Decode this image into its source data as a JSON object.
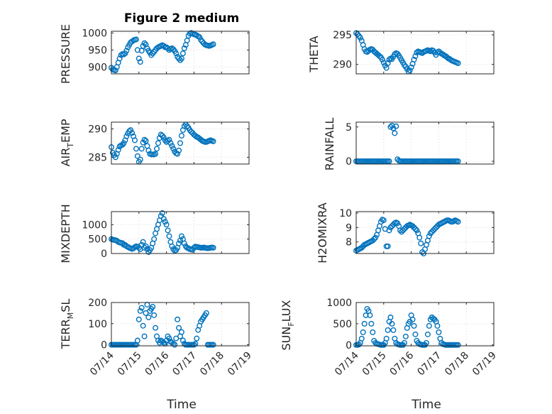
{
  "figure": {
    "title": "Figure 2 medium",
    "marker_color": "#0072BD",
    "x_tick_labels": [
      "07/14",
      "07/15",
      "07/16",
      "07/17",
      "07/18",
      "07/19"
    ],
    "x_axis_label": "Time"
  },
  "chart_data": [
    {
      "type": "scatter",
      "ylabel": "PRESSURE",
      "title": "Figure 2 medium",
      "xlim": [
        0,
        5
      ],
      "ylim": [
        880,
        1005
      ],
      "yticks": [
        900,
        950,
        1000
      ],
      "ytick_labels": [
        "900",
        "950",
        "1000"
      ],
      "x": [
        0.0,
        0.05,
        0.1,
        0.15,
        0.2,
        0.25,
        0.3,
        0.35,
        0.4,
        0.45,
        0.5,
        0.55,
        0.6,
        0.65,
        0.7,
        0.75,
        0.8,
        0.85,
        0.9,
        0.95,
        1.0,
        1.05,
        1.1,
        1.15,
        1.2,
        1.25,
        1.3,
        1.35,
        1.4,
        1.45,
        1.5,
        1.55,
        1.6,
        1.65,
        1.7,
        1.75,
        1.8,
        1.85,
        1.9,
        1.95,
        2.0,
        2.05,
        2.1,
        2.15,
        2.2,
        2.25,
        2.3,
        2.35,
        2.4,
        2.45,
        2.5,
        2.55,
        2.6,
        2.65,
        2.7,
        2.75,
        2.8,
        2.85,
        2.9,
        2.95,
        3.0,
        3.05,
        3.1,
        3.15,
        3.2,
        3.25,
        3.3,
        3.35,
        3.4,
        3.45,
        3.5,
        3.55,
        3.6,
        3.65,
        3.7
      ],
      "y": [
        898,
        893,
        891,
        890,
        900,
        913,
        925,
        935,
        938,
        937,
        940,
        948,
        958,
        965,
        972,
        975,
        978,
        980,
        981,
        950,
        925,
        915,
        948,
        962,
        970,
        966,
        955,
        948,
        942,
        935,
        940,
        945,
        950,
        955,
        958,
        960,
        962,
        964,
        962,
        958,
        958,
        955,
        950,
        953,
        955,
        952,
        947,
        940,
        930,
        925,
        920,
        925,
        940,
        955,
        965,
        978,
        992,
        998,
        1000,
        998,
        996,
        995,
        993,
        990,
        988,
        980,
        975,
        970,
        966,
        964,
        963,
        962,
        963,
        965,
        967
      ]
    },
    {
      "type": "scatter",
      "ylabel": "THETA",
      "xlim": [
        0,
        5
      ],
      "ylim": [
        288.4,
        295.6
      ],
      "yticks": [
        290,
        295
      ],
      "ytick_labels": [
        "290",
        "295"
      ],
      "x": [
        0.0,
        0.05,
        0.1,
        0.15,
        0.2,
        0.25,
        0.3,
        0.35,
        0.4,
        0.45,
        0.5,
        0.55,
        0.6,
        0.65,
        0.7,
        0.75,
        0.8,
        0.85,
        0.9,
        0.95,
        1.0,
        1.05,
        1.1,
        1.15,
        1.2,
        1.25,
        1.3,
        1.35,
        1.4,
        1.45,
        1.5,
        1.55,
        1.6,
        1.65,
        1.7,
        1.75,
        1.8,
        1.85,
        1.9,
        1.95,
        2.0,
        2.05,
        2.1,
        2.15,
        2.2,
        2.25,
        2.3,
        2.35,
        2.4,
        2.45,
        2.5,
        2.55,
        2.6,
        2.65,
        2.7,
        2.75,
        2.8,
        2.85,
        2.9,
        2.95,
        3.0,
        3.05,
        3.1,
        3.15,
        3.2,
        3.25,
        3.3,
        3.35,
        3.4,
        3.45,
        3.5,
        3.55,
        3.6,
        3.65,
        3.7
      ],
      "y": [
        295.3,
        295.1,
        294.8,
        294.5,
        294.0,
        293.3,
        292.6,
        292.2,
        292.1,
        292.3,
        292.5,
        292.6,
        292.5,
        292.2,
        292.0,
        291.8,
        291.6,
        291.4,
        291.2,
        290.8,
        290.3,
        289.8,
        289.4,
        290.2,
        290.8,
        291.0,
        290.9,
        291.3,
        291.7,
        291.9,
        291.8,
        291.5,
        291.1,
        290.7,
        290.3,
        289.9,
        289.6,
        289.2,
        288.8,
        289.0,
        289.5,
        290.1,
        290.8,
        291.4,
        292.0,
        292.2,
        292.1,
        292.0,
        291.9,
        292.1,
        292.2,
        292.3,
        292.4,
        292.3,
        292.2,
        292.4,
        292.3,
        292.0,
        291.6,
        292.0,
        292.2,
        292.0,
        291.8,
        291.7,
        291.5,
        291.4,
        291.2,
        291.0,
        290.9,
        290.7,
        290.6,
        290.5,
        290.4,
        290.3,
        290.2
      ]
    },
    {
      "type": "scatter",
      "ylabel": "AIR_TEMP",
      "xlim": [
        0,
        5
      ],
      "ylim": [
        283.8,
        291.2
      ],
      "yticks": [
        285,
        290
      ],
      "ytick_labels": [
        "285",
        "290"
      ],
      "x": [
        0.0,
        0.05,
        0.1,
        0.15,
        0.2,
        0.25,
        0.3,
        0.35,
        0.4,
        0.45,
        0.5,
        0.55,
        0.6,
        0.65,
        0.7,
        0.75,
        0.8,
        0.85,
        0.9,
        0.95,
        1.0,
        1.05,
        1.1,
        1.15,
        1.2,
        1.25,
        1.3,
        1.35,
        1.4,
        1.45,
        1.5,
        1.55,
        1.6,
        1.65,
        1.7,
        1.75,
        1.8,
        1.85,
        1.9,
        1.95,
        2.0,
        2.05,
        2.1,
        2.15,
        2.2,
        2.25,
        2.3,
        2.35,
        2.4,
        2.45,
        2.5,
        2.55,
        2.6,
        2.65,
        2.7,
        2.75,
        2.8,
        2.85,
        2.9,
        2.95,
        3.0,
        3.05,
        3.1,
        3.15,
        3.2,
        3.25,
        3.3,
        3.35,
        3.4,
        3.45,
        3.5,
        3.55,
        3.6,
        3.65,
        3.7
      ],
      "y": [
        286.8,
        285.8,
        285.4,
        285.0,
        285.6,
        286.3,
        286.9,
        287.1,
        287.2,
        287.5,
        288.0,
        288.7,
        289.2,
        289.6,
        289.8,
        289.3,
        288.7,
        288.0,
        286.5,
        285.2,
        284.2,
        284.6,
        286.5,
        287.6,
        288.1,
        287.9,
        287.0,
        286.2,
        285.6,
        285.5,
        285.5,
        285.5,
        285.6,
        286.5,
        287.5,
        288.4,
        289.0,
        288.8,
        288.5,
        288.0,
        287.7,
        287.9,
        288.1,
        287.5,
        287.0,
        286.5,
        286.0,
        285.7,
        285.6,
        286.2,
        287.5,
        288.8,
        289.8,
        290.5,
        290.8,
        290.5,
        290.2,
        289.8,
        289.5,
        289.3,
        289.0,
        288.8,
        288.6,
        288.5,
        288.3,
        288.1,
        287.9,
        287.8,
        287.7,
        287.7,
        287.8,
        287.9,
        288.0,
        287.9,
        287.8
      ]
    },
    {
      "type": "scatter",
      "ylabel": "RAINFALL",
      "xlim": [
        0,
        5
      ],
      "ylim": [
        -0.4,
        5.7
      ],
      "yticks": [
        0,
        5
      ],
      "ytick_labels": [
        "0",
        "5"
      ],
      "x": [
        0.0,
        0.05,
        0.1,
        0.15,
        0.2,
        0.25,
        0.3,
        0.35,
        0.4,
        0.45,
        0.5,
        0.55,
        0.6,
        0.65,
        0.7,
        0.75,
        0.8,
        0.85,
        0.9,
        0.95,
        1.0,
        1.05,
        1.1,
        1.15,
        1.2,
        1.25,
        1.3,
        1.35,
        1.4,
        1.45,
        1.5,
        1.55,
        1.6,
        1.65,
        1.7,
        1.75,
        1.8,
        1.85,
        1.9,
        1.95,
        2.0,
        2.05,
        2.1,
        2.15,
        2.2,
        2.25,
        2.3,
        2.35,
        2.4,
        2.45,
        2.5,
        2.55,
        2.6,
        2.65,
        2.7,
        2.75,
        2.8,
        2.85,
        2.9,
        2.95,
        3.0,
        3.05,
        3.1,
        3.15,
        3.2,
        3.25,
        3.3,
        3.35,
        3.4,
        3.45,
        3.5,
        3.55,
        3.6,
        3.65,
        3.7
      ],
      "y": [
        0,
        0,
        0,
        0,
        0,
        0,
        0,
        0,
        0,
        0,
        0,
        0,
        0,
        0,
        0,
        0,
        0,
        0,
        0,
        0,
        0,
        0,
        0,
        0,
        0,
        5.0,
        5.2,
        4.8,
        4.1,
        5.1,
        0.3,
        0.1,
        0,
        0,
        0,
        0,
        0,
        0,
        0,
        0,
        0,
        0,
        0,
        0,
        0,
        0,
        0,
        0,
        0,
        0,
        0,
        0,
        0,
        0,
        0,
        0,
        0,
        0,
        0,
        0,
        0,
        0,
        0,
        0,
        0,
        0,
        0,
        0,
        0,
        0,
        0,
        0,
        0,
        0,
        0
      ]
    },
    {
      "type": "scatter",
      "ylabel": "MIXDEPTH",
      "xlim": [
        0,
        5
      ],
      "ylim": [
        0,
        1450
      ],
      "yticks": [
        0,
        500,
        1000
      ],
      "ytick_labels": [
        "0",
        "500",
        "1000"
      ],
      "x": [
        0.0,
        0.05,
        0.1,
        0.15,
        0.2,
        0.25,
        0.3,
        0.35,
        0.4,
        0.45,
        0.5,
        0.55,
        0.6,
        0.65,
        0.7,
        0.75,
        0.8,
        0.85,
        0.9,
        0.95,
        1.0,
        1.05,
        1.1,
        1.15,
        1.2,
        1.25,
        1.3,
        1.35,
        1.4,
        1.45,
        1.5,
        1.55,
        1.6,
        1.65,
        1.7,
        1.75,
        1.8,
        1.85,
        1.9,
        1.95,
        2.0,
        2.05,
        2.1,
        2.15,
        2.2,
        2.25,
        2.3,
        2.35,
        2.4,
        2.45,
        2.5,
        2.55,
        2.6,
        2.65,
        2.7,
        2.75,
        2.8,
        2.85,
        2.9,
        2.95,
        3.0,
        3.05,
        3.1,
        3.15,
        3.2,
        3.25,
        3.3,
        3.35,
        3.4,
        3.45,
        3.5,
        3.55,
        3.6,
        3.65,
        3.7
      ],
      "y": [
        500,
        480,
        470,
        460,
        440,
        400,
        380,
        370,
        360,
        300,
        300,
        250,
        230,
        200,
        180,
        160,
        180,
        220,
        250,
        240,
        200,
        150,
        300,
        400,
        200,
        250,
        150,
        50,
        120,
        200,
        350,
        500,
        700,
        850,
        1000,
        1150,
        1300,
        1400,
        1200,
        1100,
        1000,
        800,
        600,
        400,
        250,
        150,
        100,
        120,
        200,
        350,
        450,
        600,
        500,
        350,
        250,
        200,
        180,
        150,
        140,
        130,
        200,
        240,
        230,
        220,
        210,
        200,
        200,
        210,
        200,
        190,
        180,
        190,
        200,
        210,
        200
      ]
    },
    {
      "type": "scatter",
      "ylabel": "H2OMIXRA",
      "xlim": [
        0,
        5
      ],
      "ylim": [
        7.2,
        10.1
      ],
      "yticks": [
        8,
        9,
        10
      ],
      "ytick_labels": [
        "8",
        "9",
        "10"
      ],
      "x": [
        0.0,
        0.05,
        0.1,
        0.15,
        0.2,
        0.25,
        0.3,
        0.35,
        0.4,
        0.45,
        0.5,
        0.55,
        0.6,
        0.65,
        0.7,
        0.75,
        0.8,
        0.85,
        0.9,
        0.95,
        1.0,
        1.05,
        1.1,
        1.15,
        1.2,
        1.25,
        1.3,
        1.35,
        1.4,
        1.45,
        1.5,
        1.55,
        1.6,
        1.65,
        1.7,
        1.75,
        1.8,
        1.85,
        1.9,
        1.95,
        2.0,
        2.05,
        2.1,
        2.15,
        2.2,
        2.25,
        2.3,
        2.35,
        2.4,
        2.45,
        2.5,
        2.55,
        2.6,
        2.65,
        2.7,
        2.75,
        2.8,
        2.85,
        2.9,
        2.95,
        3.0,
        3.05,
        3.1,
        3.15,
        3.2,
        3.25,
        3.3,
        3.35,
        3.4,
        3.45,
        3.5,
        3.55,
        3.6,
        3.65,
        3.7
      ],
      "y": [
        7.4,
        7.45,
        7.5,
        7.55,
        7.6,
        7.7,
        7.8,
        7.85,
        7.9,
        7.95,
        8.0,
        8.05,
        8.1,
        8.2,
        8.3,
        8.5,
        8.8,
        9.1,
        9.4,
        9.55,
        9.5,
        8.9,
        7.7,
        7.7,
        8.8,
        9.0,
        9.1,
        9.2,
        9.3,
        9.35,
        9.3,
        9.1,
        8.8,
        8.7,
        8.8,
        8.9,
        9.0,
        9.1,
        9.15,
        9.2,
        9.15,
        9.1,
        9.0,
        8.9,
        8.8,
        8.6,
        8.3,
        7.9,
        7.3,
        7.2,
        7.5,
        7.8,
        8.1,
        8.4,
        8.6,
        8.7,
        8.8,
        8.9,
        9.0,
        9.1,
        9.2,
        9.25,
        9.3,
        9.35,
        9.4,
        9.45,
        9.5,
        9.5,
        9.45,
        9.4,
        9.4,
        9.45,
        9.5,
        9.45,
        9.4
      ]
    },
    {
      "type": "scatter",
      "ylabel": "TERR_MSL",
      "xlim": [
        0,
        5
      ],
      "ylim": [
        -5,
        200
      ],
      "yticks": [
        0,
        100,
        200
      ],
      "ytick_labels": [
        "0",
        "100",
        "200"
      ],
      "x": [
        0.0,
        0.05,
        0.1,
        0.15,
        0.2,
        0.25,
        0.3,
        0.35,
        0.4,
        0.45,
        0.5,
        0.55,
        0.6,
        0.65,
        0.7,
        0.75,
        0.8,
        0.85,
        0.9,
        0.95,
        1.0,
        1.05,
        1.1,
        1.15,
        1.2,
        1.25,
        1.3,
        1.35,
        1.4,
        1.45,
        1.5,
        1.55,
        1.6,
        1.65,
        1.7,
        1.75,
        1.8,
        1.85,
        1.9,
        1.95,
        2.0,
        2.05,
        2.1,
        2.15,
        2.2,
        2.25,
        2.3,
        2.35,
        2.4,
        2.45,
        2.5,
        2.55,
        2.6,
        2.65,
        2.7,
        2.75,
        2.8,
        2.85,
        2.9,
        2.95,
        3.0,
        3.05,
        3.1,
        3.15,
        3.2,
        3.25,
        3.3,
        3.35,
        3.4,
        3.45,
        3.5,
        3.55,
        3.6,
        3.65,
        3.7
      ],
      "y": [
        0,
        0,
        0,
        0,
        0,
        0,
        0,
        0,
        0,
        0,
        0,
        0,
        0,
        0,
        0,
        0,
        0,
        0,
        0,
        20,
        120,
        160,
        175,
        90,
        40,
        150,
        190,
        130,
        160,
        170,
        180,
        140,
        80,
        40,
        20,
        10,
        20,
        15,
        10,
        5,
        20,
        40,
        30,
        15,
        10,
        5,
        0,
        30,
        120,
        80,
        40,
        60,
        20,
        5,
        0,
        0,
        0,
        0,
        0,
        0,
        0,
        5,
        30,
        70,
        90,
        110,
        120,
        130,
        140,
        150,
        0,
        0,
        0,
        0,
        0
      ]
    },
    {
      "type": "scatter",
      "ylabel": "SUN_FLUX",
      "xlim": [
        0,
        5
      ],
      "ylim": [
        -20,
        1000
      ],
      "yticks": [
        0,
        500,
        1000
      ],
      "ytick_labels": [
        "0",
        "500",
        "1000"
      ],
      "x": [
        0.0,
        0.05,
        0.1,
        0.15,
        0.2,
        0.25,
        0.3,
        0.35,
        0.4,
        0.45,
        0.5,
        0.55,
        0.6,
        0.65,
        0.7,
        0.75,
        0.8,
        0.85,
        0.9,
        0.95,
        1.0,
        1.05,
        1.1,
        1.15,
        1.2,
        1.25,
        1.3,
        1.35,
        1.4,
        1.45,
        1.5,
        1.55,
        1.6,
        1.65,
        1.7,
        1.75,
        1.8,
        1.85,
        1.9,
        1.95,
        2.0,
        2.05,
        2.1,
        2.15,
        2.2,
        2.25,
        2.3,
        2.35,
        2.4,
        2.45,
        2.5,
        2.55,
        2.6,
        2.65,
        2.7,
        2.75,
        2.8,
        2.85,
        2.9,
        2.95,
        3.0,
        3.05,
        3.1,
        3.15,
        3.2,
        3.25,
        3.3,
        3.35,
        3.4,
        3.45,
        3.5,
        3.55,
        3.6,
        3.65,
        3.7
      ],
      "y": [
        0,
        0,
        10,
        50,
        150,
        300,
        500,
        700,
        850,
        800,
        700,
        500,
        300,
        100,
        50,
        30,
        20,
        10,
        0,
        0,
        0,
        50,
        150,
        350,
        550,
        650,
        500,
        350,
        150,
        50,
        20,
        10,
        0,
        0,
        0,
        50,
        200,
        400,
        500,
        550,
        700,
        600,
        450,
        250,
        100,
        50,
        20,
        10,
        0,
        0,
        0,
        50,
        250,
        450,
        600,
        650,
        620,
        600,
        550,
        450,
        300,
        150,
        50,
        20,
        10,
        0,
        0,
        0,
        0,
        0,
        0,
        0,
        0,
        0,
        0
      ]
    }
  ]
}
